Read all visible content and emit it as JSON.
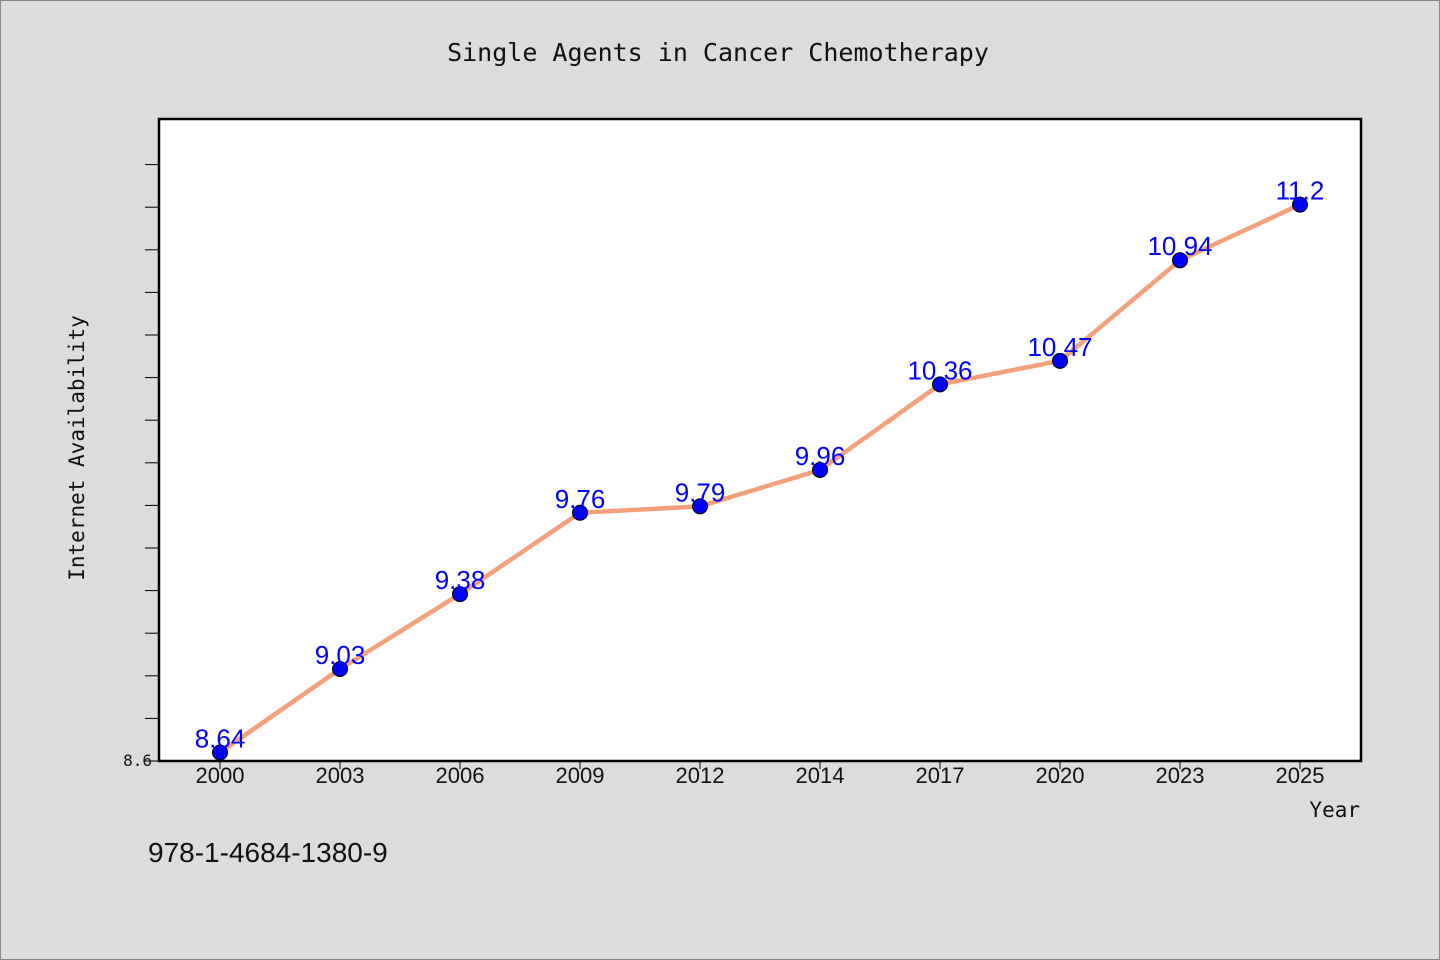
{
  "chart_data": {
    "type": "line",
    "title": "Single Agents in Cancer Chemotherapy",
    "xlabel": "Year",
    "ylabel": "Internet Availability",
    "categories": [
      "2000",
      "2003",
      "2006",
      "2009",
      "2012",
      "2014",
      "2017",
      "2020",
      "2023",
      "2025"
    ],
    "series": [
      {
        "values": [
          8.64,
          9.03,
          9.38,
          9.76,
          9.79,
          9.96,
          10.36,
          10.47,
          10.94,
          11.2
        ],
        "labels": [
          "8.64",
          "9.03",
          "9.38",
          "9.76",
          "9.79",
          "9.96",
          "10.36",
          "10.47",
          "10.94",
          "11.2"
        ]
      }
    ],
    "ylim": [
      8.6,
      11.6
    ],
    "ytick_labels": [
      "8.6"
    ],
    "grid": false,
    "legend": "none"
  },
  "footer": {
    "isbn": "978-1-4684-1380-9"
  },
  "colors": {
    "background": "#dcdcdc",
    "plot_background": "#ffffff",
    "line": "#f4a07a",
    "marker": "#0000ff",
    "data_label": "#0000ff",
    "axis": "#000000"
  }
}
